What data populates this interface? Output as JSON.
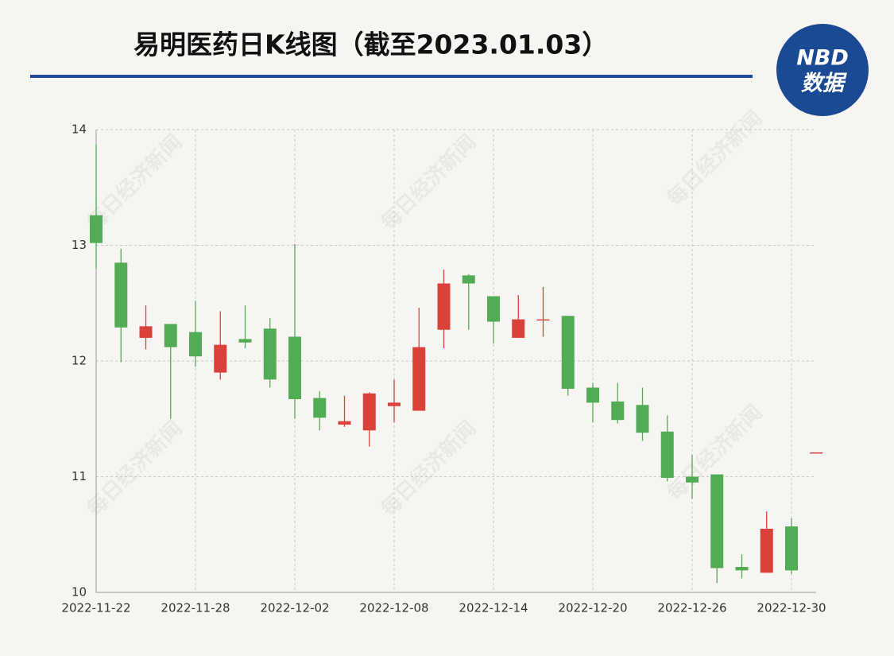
{
  "chart_data": {
    "type": "candlestick",
    "title": "易明医药日K线图（截至2023.01.03）",
    "logo": {
      "top": "NBD",
      "bottom": "数据"
    },
    "watermark": "每日经济新闻",
    "categories": [
      "2022-11-22",
      null,
      null,
      null,
      "2022-11-28",
      null,
      null,
      null,
      "2022-12-02",
      null,
      null,
      null,
      "2022-12-08",
      null,
      null,
      null,
      "2022-12-14",
      null,
      null,
      null,
      "2022-12-20",
      null,
      null,
      null,
      "2022-12-26",
      null,
      null,
      null,
      "2022-12-30",
      null
    ],
    "open": [
      13.26,
      12.85,
      12.2,
      12.32,
      12.25,
      11.9,
      12.19,
      12.28,
      12.21,
      11.68,
      11.45,
      11.4,
      11.61,
      11.57,
      12.27,
      12.74,
      12.56,
      12.2,
      12.35,
      12.39,
      11.77,
      11.65,
      11.62,
      11.39,
      11.0,
      11.02,
      10.22,
      10.17,
      10.57,
      11.2
    ],
    "high": [
      13.87,
      12.97,
      12.48,
      12.32,
      12.52,
      12.43,
      12.48,
      12.37,
      13.01,
      11.74,
      11.7,
      11.73,
      11.84,
      12.46,
      12.79,
      12.75,
      12.56,
      12.57,
      12.64,
      12.39,
      11.81,
      11.81,
      11.77,
      11.53,
      11.19,
      11.02,
      10.33,
      10.7,
      10.64,
      11.21
    ],
    "low": [
      12.8,
      11.99,
      12.1,
      11.5,
      11.95,
      11.84,
      12.11,
      11.77,
      11.5,
      11.4,
      11.43,
      11.26,
      11.47,
      11.57,
      12.11,
      12.27,
      12.15,
      12.2,
      12.21,
      11.7,
      11.47,
      11.46,
      11.31,
      10.96,
      10.81,
      10.08,
      10.12,
      10.17,
      10.16,
      11.2
    ],
    "close": [
      13.02,
      12.29,
      12.3,
      12.12,
      12.04,
      12.14,
      12.16,
      11.84,
      11.67,
      11.51,
      11.48,
      11.72,
      11.64,
      12.12,
      12.67,
      12.67,
      12.34,
      12.36,
      12.36,
      11.76,
      11.64,
      11.49,
      11.38,
      10.99,
      10.95,
      10.21,
      10.19,
      10.55,
      10.19,
      11.21
    ],
    "up_color": "#d9413a",
    "down_color": "#52ab55",
    "ylim": [
      10,
      14
    ],
    "yticks": [
      10,
      11,
      12,
      13,
      14
    ],
    "grid": true
  }
}
